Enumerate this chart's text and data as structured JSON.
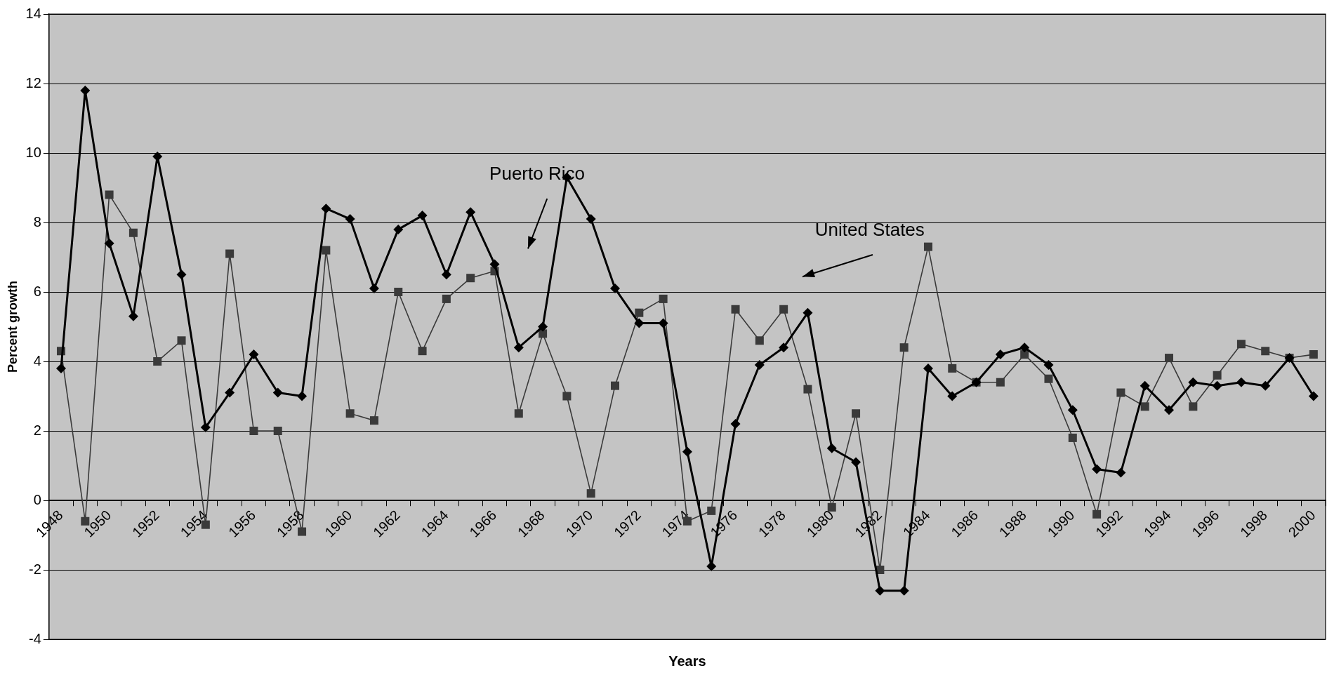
{
  "chart_data": {
    "type": "line",
    "xlabel": "Years",
    "ylabel": "Percent growth",
    "categories": [
      "1948",
      null,
      "1950",
      null,
      "1952",
      null,
      "1954",
      null,
      "1956",
      null,
      "1958",
      null,
      "1960",
      null,
      "1962",
      null,
      "1964",
      null,
      "1966",
      null,
      "1968",
      null,
      "1970",
      null,
      "1972",
      null,
      "1974",
      null,
      "1976",
      null,
      "1978",
      null,
      "1980",
      null,
      "1982",
      null,
      "1984",
      null,
      "1986",
      null,
      "1988",
      null,
      "1990",
      null,
      "1992",
      null,
      "1994",
      null,
      "1996",
      null,
      "1998",
      null,
      "2000"
    ],
    "series": [
      {
        "name": "Puerto Rico",
        "color": "#000000",
        "marker": "diamond",
        "values": [
          3.8,
          11.8,
          7.4,
          5.3,
          9.9,
          6.5,
          2.1,
          3.1,
          4.2,
          3.1,
          3.0,
          8.4,
          8.1,
          6.1,
          7.8,
          8.2,
          6.5,
          8.3,
          6.8,
          4.4,
          5.0,
          9.3,
          8.1,
          6.1,
          5.1,
          5.1,
          1.4,
          -1.9,
          2.2,
          3.9,
          4.4,
          5.4,
          1.5,
          1.1,
          -2.6,
          -2.6,
          3.8,
          3.0,
          3.4,
          4.2,
          4.4,
          3.9,
          2.6,
          0.9,
          0.8,
          3.3,
          2.6,
          3.4,
          3.3,
          3.4,
          3.3,
          4.1,
          3.0
        ]
      },
      {
        "name": "United States",
        "color": "#3a3a3a",
        "marker": "square",
        "values": [
          4.3,
          -0.6,
          8.8,
          7.7,
          4.0,
          4.6,
          -0.7,
          7.1,
          2.0,
          2.0,
          -0.9,
          7.2,
          2.5,
          2.3,
          6.0,
          4.3,
          5.8,
          6.4,
          6.6,
          2.5,
          4.8,
          3.0,
          0.2,
          3.3,
          5.4,
          5.8,
          -0.6,
          -0.3,
          5.5,
          4.6,
          5.5,
          3.2,
          -0.2,
          2.5,
          -2.0,
          4.4,
          7.3,
          3.8,
          3.4,
          3.4,
          4.2,
          3.5,
          1.8,
          -0.4,
          3.1,
          2.7,
          4.1,
          2.7,
          3.6,
          4.5,
          4.3,
          4.1,
          4.2
        ]
      }
    ],
    "ylim": [
      -4,
      14
    ],
    "yticks": [
      -4,
      -2,
      0,
      2,
      4,
      6,
      8,
      10,
      12,
      14
    ],
    "grid": "y",
    "legend": false,
    "line_style": "solid"
  }
}
